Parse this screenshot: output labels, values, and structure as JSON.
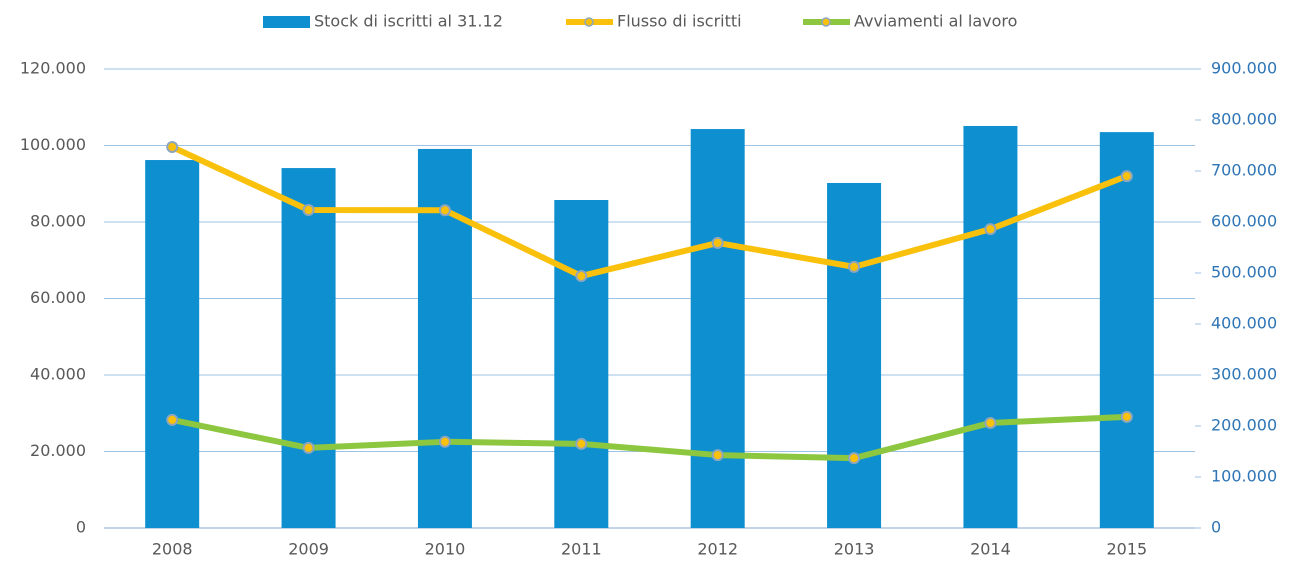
{
  "chart_data": {
    "type": "bar_line",
    "categories": [
      "2008",
      "2009",
      "2010",
      "2011",
      "2012",
      "2013",
      "2014",
      "2015"
    ],
    "series": [
      {
        "name": "Stock di iscritti al 31.12",
        "type": "bar",
        "color": "#0e8fd0",
        "values": [
          96200,
          94100,
          99100,
          85750,
          104300,
          90200,
          105100,
          103500
        ]
      },
      {
        "name": "Flusso di iscritti",
        "type": "line",
        "axis": "y2",
        "color": "#f9c10b",
        "values": [
          747000,
          623500,
          623000,
          494000,
          559000,
          512000,
          586000,
          690000
        ]
      },
      {
        "name": "Avviamenti al lavoro",
        "type": "line",
        "axis": "y2",
        "color": "#8dc63f",
        "values": [
          212000,
          157000,
          169000,
          165000,
          143000,
          137000,
          206000,
          218000
        ]
      }
    ],
    "ylim": [
      0,
      120000
    ],
    "yticks": [
      0,
      {
        "value": 20000,
        "label": "20.000"
      },
      {
        "value": 40000,
        "label": "40.000"
      },
      {
        "value": 60000,
        "label": "60.000"
      },
      {
        "value": 80000,
        "label": "80.000"
      },
      {
        "value": 100000,
        "label": "100.000"
      },
      {
        "value": 120000,
        "label": "120.000"
      }
    ],
    "y2lim": [
      0,
      900000
    ],
    "y2ticks": [
      0,
      {
        "value": 100000,
        "label": "100.000"
      },
      {
        "value": 200000,
        "label": "200.000"
      },
      {
        "value": 300000,
        "label": "300.000"
      },
      {
        "value": 400000,
        "label": "400.000"
      },
      {
        "value": 500000,
        "label": "500.000"
      },
      {
        "value": 600000,
        "label": "600.000"
      },
      {
        "value": 700000,
        "label": "700.000"
      },
      {
        "value": 800000,
        "label": "800.000"
      },
      {
        "value": 900000,
        "label": "900.000"
      }
    ],
    "grid": true,
    "legend": "top"
  }
}
